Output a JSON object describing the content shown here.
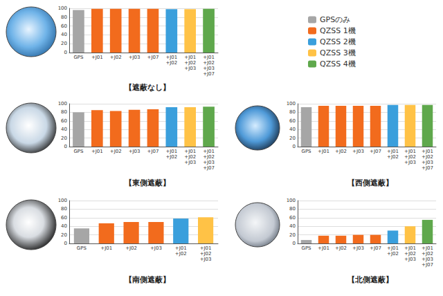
{
  "chart_data": [
    {
      "type": "bar",
      "title": "【遮蔽なし】",
      "legend": "right",
      "grid": true,
      "categories": [
        "GPS",
        "+J01",
        "+J02",
        "+J03",
        "+J07",
        "+J01+J02",
        "+J01+J02+J03",
        "+J01+J02+J03+J07"
      ],
      "ylim": [
        0,
        100
      ],
      "yticks": [
        0,
        20,
        40,
        60,
        80,
        100
      ],
      "series": [
        {
          "name": "GPSのみ",
          "color": "#a6a6a6",
          "values": [
            96,
            null,
            null,
            null,
            null,
            null,
            null,
            null
          ]
        },
        {
          "name": "QZSS 1機",
          "color": "#f26b1d",
          "values": [
            null,
            99,
            99,
            99,
            99,
            null,
            null,
            null
          ]
        },
        {
          "name": "QZSS 2機",
          "color": "#3a9fdc",
          "values": [
            null,
            null,
            null,
            null,
            null,
            98,
            null,
            null
          ]
        },
        {
          "name": "QZSS 3機",
          "color": "#ffc246",
          "values": [
            null,
            null,
            null,
            null,
            null,
            null,
            98,
            null
          ]
        },
        {
          "name": "QZSS 4機",
          "color": "#5fa84c",
          "values": [
            null,
            null,
            null,
            null,
            null,
            null,
            null,
            99
          ]
        }
      ]
    },
    {
      "type": "bar",
      "title": "【東側遮蔽】",
      "grid": true,
      "categories": [
        "GPS",
        "+J01",
        "+J02",
        "+J03",
        "+J07",
        "+J01+J02",
        "+J01+J02+J03",
        "+J01+J02+J03+J07"
      ],
      "ylim": [
        0,
        100
      ],
      "yticks": [
        0,
        20,
        40,
        60,
        80,
        100
      ],
      "series": [
        {
          "name": "GPSのみ",
          "color": "#a6a6a6",
          "values": [
            80,
            null,
            null,
            null,
            null,
            null,
            null,
            null
          ]
        },
        {
          "name": "QZSS 1機",
          "color": "#f26b1d",
          "values": [
            null,
            85,
            83,
            86,
            87,
            null,
            null,
            null
          ]
        },
        {
          "name": "QZSS 2機",
          "color": "#3a9fdc",
          "values": [
            null,
            null,
            null,
            null,
            null,
            92,
            null,
            null
          ]
        },
        {
          "name": "QZSS 3機",
          "color": "#ffc246",
          "values": [
            null,
            null,
            null,
            null,
            null,
            null,
            92,
            null
          ]
        },
        {
          "name": "QZSS 4機",
          "color": "#5fa84c",
          "values": [
            null,
            null,
            null,
            null,
            null,
            null,
            null,
            93
          ]
        }
      ]
    },
    {
      "type": "bar",
      "title": "【西側遮蔽】",
      "grid": true,
      "categories": [
        "GPS",
        "+J01",
        "+J02",
        "+J03",
        "+J07",
        "+J01+J02",
        "+J01+J02+J03",
        "+J01+J02+J03+J07"
      ],
      "ylim": [
        0,
        100
      ],
      "yticks": [
        0,
        20,
        40,
        60,
        80,
        100
      ],
      "series": [
        {
          "name": "GPSのみ",
          "color": "#a6a6a6",
          "values": [
            92,
            null,
            null,
            null,
            null,
            null,
            null,
            null
          ]
        },
        {
          "name": "QZSS 1機",
          "color": "#f26b1d",
          "values": [
            null,
            95,
            95,
            95,
            95,
            null,
            null,
            null
          ]
        },
        {
          "name": "QZSS 2機",
          "color": "#3a9fdc",
          "values": [
            null,
            null,
            null,
            null,
            null,
            97,
            null,
            null
          ]
        },
        {
          "name": "QZSS 3機",
          "color": "#ffc246",
          "values": [
            null,
            null,
            null,
            null,
            null,
            null,
            97,
            null
          ]
        },
        {
          "name": "QZSS 4機",
          "color": "#5fa84c",
          "values": [
            null,
            null,
            null,
            null,
            null,
            null,
            null,
            97
          ]
        }
      ]
    },
    {
      "type": "bar",
      "title": "【南側遮蔽】",
      "grid": true,
      "categories": [
        "GPS",
        "+J01",
        "+J02",
        "+J03",
        "+J01+J02",
        "+J01+J02+J03"
      ],
      "ylim": [
        0,
        100
      ],
      "yticks": [
        0,
        20,
        40,
        60,
        80,
        100
      ],
      "series": [
        {
          "name": "GPSのみ",
          "color": "#a6a6a6",
          "values": [
            35,
            null,
            null,
            null,
            null,
            null
          ]
        },
        {
          "name": "QZSS 1機",
          "color": "#f26b1d",
          "values": [
            null,
            47,
            50,
            50,
            null,
            null
          ]
        },
        {
          "name": "QZSS 2機",
          "color": "#3a9fdc",
          "values": [
            null,
            null,
            null,
            null,
            58,
            null
          ]
        },
        {
          "name": "QZSS 3機",
          "color": "#ffc246",
          "values": [
            null,
            null,
            null,
            null,
            null,
            61
          ]
        }
      ]
    },
    {
      "type": "bar",
      "title": "【北側遮蔽】",
      "grid": true,
      "categories": [
        "GPS",
        "+J01",
        "+J02",
        "+J03",
        "+J07",
        "+J01+J02",
        "+J01+J02+J03",
        "+J01+J02+J03+J07"
      ],
      "ylim": [
        0,
        100
      ],
      "yticks": [
        0,
        20,
        40,
        60,
        80,
        100
      ],
      "series": [
        {
          "name": "GPSのみ",
          "color": "#a6a6a6",
          "values": [
            8,
            null,
            null,
            null,
            null,
            null,
            null,
            null
          ]
        },
        {
          "name": "QZSS 1機",
          "color": "#f26b1d",
          "values": [
            null,
            18,
            18,
            20,
            20,
            null,
            null,
            null
          ]
        },
        {
          "name": "QZSS 2機",
          "color": "#3a9fdc",
          "values": [
            null,
            null,
            null,
            null,
            null,
            30,
            null,
            null
          ]
        },
        {
          "name": "QZSS 3機",
          "color": "#ffc246",
          "values": [
            null,
            null,
            null,
            null,
            null,
            null,
            40,
            null
          ]
        },
        {
          "name": "QZSS 4機",
          "color": "#5fa84c",
          "values": [
            null,
            null,
            null,
            null,
            null,
            null,
            null,
            55
          ]
        }
      ]
    }
  ]
}
